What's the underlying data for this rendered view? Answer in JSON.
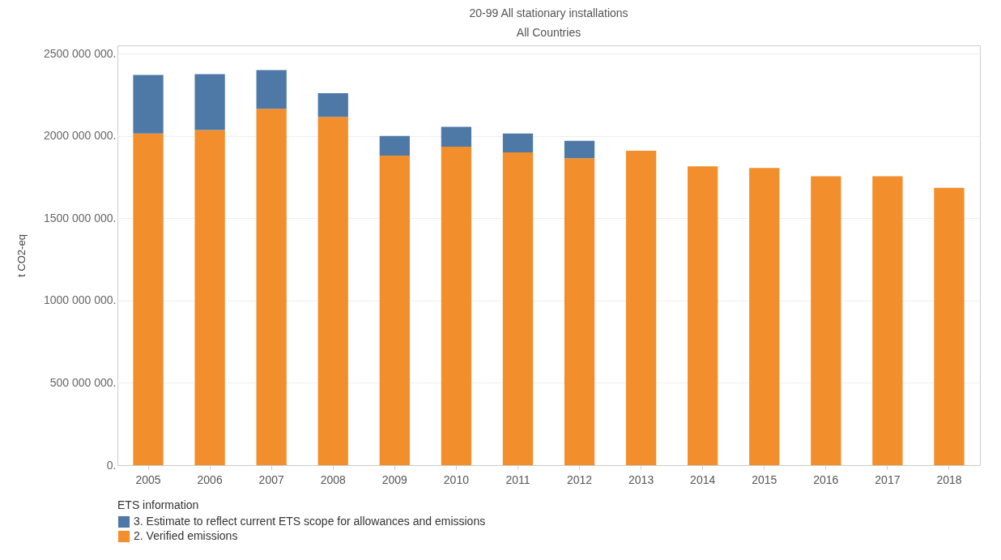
{
  "chart_data": {
    "type": "bar",
    "title": "20-99 All stationary installations",
    "subtitle": "All Countries",
    "ylabel": "t CO2-eq",
    "legend_title": "ETS information",
    "stacked": true,
    "legend": "bottom",
    "grid": "y",
    "categories": [
      "2005",
      "2006",
      "2007",
      "2008",
      "2009",
      "2010",
      "2011",
      "2012",
      "2013",
      "2014",
      "2015",
      "2016",
      "2017",
      "2018"
    ],
    "series": [
      {
        "name": "2. Verified emissions",
        "color": "#f28e2b",
        "values": [
          2015000000,
          2035000000,
          2165000000,
          2115000000,
          1880000000,
          1935000000,
          1900000000,
          1865000000,
          1910000000,
          1815000000,
          1805000000,
          1755000000,
          1755000000,
          1685000000
        ]
      },
      {
        "name": "3. Estimate to reflect current ETS scope for allowances and emissions",
        "color": "#4e79a7",
        "values": [
          355000000,
          340000000,
          235000000,
          145000000,
          120000000,
          120000000,
          115000000,
          105000000,
          null,
          null,
          null,
          null,
          null,
          null
        ]
      }
    ],
    "ylim": [
      0,
      2550000000
    ],
    "yticks": [
      {
        "value": 0,
        "label": "0."
      },
      {
        "value": 500000000,
        "label": "500 000 000."
      },
      {
        "value": 1000000000,
        "label": "1000 000 000."
      },
      {
        "value": 1500000000,
        "label": "1500 000 000."
      },
      {
        "value": 2000000000,
        "label": "2000 000 000."
      },
      {
        "value": 2500000000,
        "label": "2500 000 000."
      }
    ]
  }
}
